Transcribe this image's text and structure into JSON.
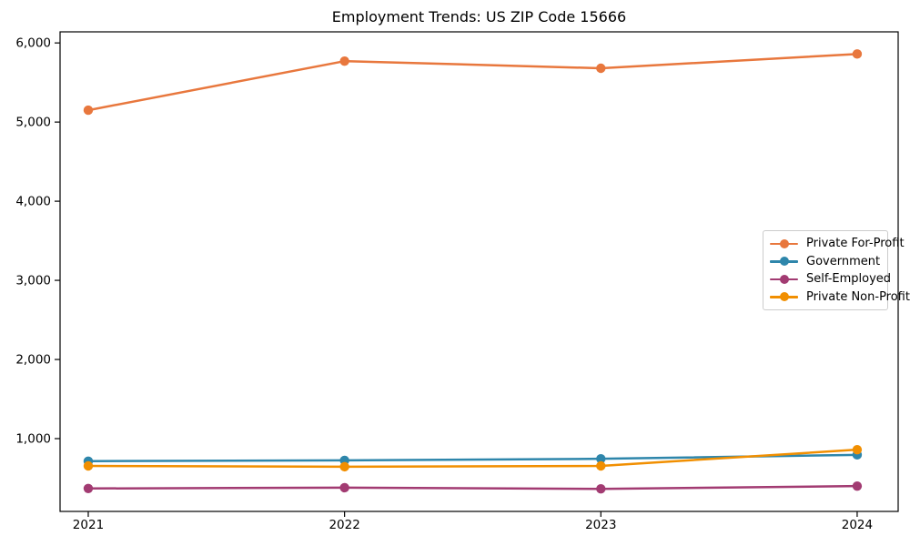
{
  "chart_data": {
    "type": "line",
    "title": "Employment Trends: US ZIP Code 15666",
    "xlabel": "",
    "ylabel": "",
    "grid": false,
    "legend_position": "center-right",
    "x": [
      2021,
      2022,
      2023,
      2024
    ],
    "x_tick_labels": [
      "2021",
      "2022",
      "2023",
      "2024"
    ],
    "y_ticks": [
      1000,
      2000,
      3000,
      4000,
      5000,
      6000
    ],
    "y_tick_labels": [
      "1,000",
      "2,000",
      "3,000",
      "4,000",
      "5,000",
      "6,000"
    ],
    "xlim": [
      2020.89,
      2024.16
    ],
    "ylim": [
      80,
      6140
    ],
    "series": [
      {
        "name": "Private For-Profit",
        "color": "#E8773D",
        "values": [
          5150,
          5770,
          5680,
          5860
        ]
      },
      {
        "name": "Government",
        "color": "#2E86AB",
        "values": [
          715,
          725,
          745,
          795
        ]
      },
      {
        "name": "Self-Employed",
        "color": "#A23B72",
        "values": [
          370,
          380,
          365,
          400
        ]
      },
      {
        "name": "Private Non-Profit",
        "color": "#F18F01",
        "values": [
          655,
          645,
          655,
          860
        ]
      }
    ],
    "axis_color": "#000000",
    "tick_label_color": "#000000"
  }
}
